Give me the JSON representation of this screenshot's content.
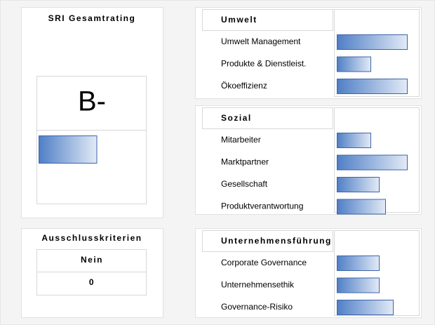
{
  "rating": {
    "title": "SRI Gesamtrating",
    "grade": "B-",
    "value": 55,
    "xlim": [
      0,
      100
    ]
  },
  "exclusion": {
    "title": "Ausschlusskriterien",
    "status": "Nein",
    "count": 0
  },
  "xlim": [
    0,
    100
  ],
  "sections": [
    {
      "title": "Umwelt",
      "items": [
        {
          "label": "Umwelt Management",
          "value": 100
        },
        {
          "label": "Produkte & Dienstleist.",
          "value": 48
        },
        {
          "label": "Ökoeffizienz",
          "value": 100
        }
      ]
    },
    {
      "title": "Sozial",
      "items": [
        {
          "label": "Mitarbeiter",
          "value": 48
        },
        {
          "label": "Marktpartner",
          "value": 100
        },
        {
          "label": "Gesellschaft",
          "value": 60
        },
        {
          "label": "Produktverantwortung",
          "value": 69
        }
      ]
    },
    {
      "title": "Unternehmensführung",
      "items": [
        {
          "label": "Corporate Governance",
          "value": 60
        },
        {
          "label": "Unternehmensethik",
          "value": 60
        },
        {
          "label": "Governance-Risiko",
          "value": 80
        }
      ]
    }
  ]
}
